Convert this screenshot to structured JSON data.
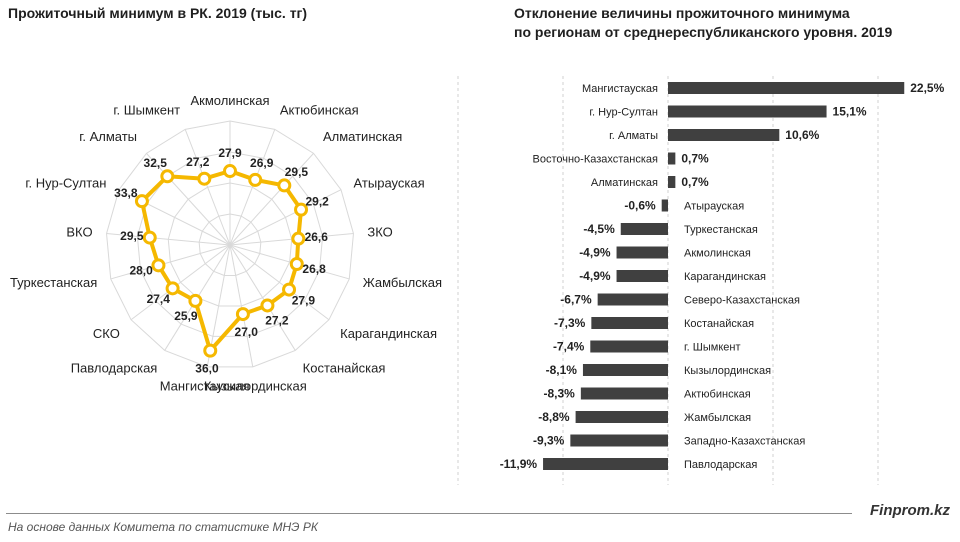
{
  "left_title": "Прожиточный минимум в РК. 2019  (тыс. тг)",
  "right_title_line1": "Отклонение величины прожиточного минимума",
  "right_title_line2": "по регионам от среднереспубликанского уровня. 2019",
  "footnote": "На основе данных  Комитета по статистике МНЭ РК",
  "brand": "Finprom.kz",
  "colors": {
    "radar_line": "#f5b800",
    "radar_marker_fill": "#ffffff",
    "bar": "#404040",
    "grid": "#d9d9d9"
  },
  "chart_data": [
    {
      "type": "radar",
      "title": "Прожиточный минимум в РК. 2019  (тыс. тг)",
      "categories": [
        "Акмолинская",
        "Актюбинская",
        "Алматинская",
        "Атырауская",
        "ЗКО",
        "Жамбылская",
        "Карагандинская",
        "Костанайская",
        "Кызылординская",
        "Мангистауская",
        "Павлодарская",
        "СКО",
        "Туркестанская",
        "ВКО",
        "г. Нур-Султан",
        "г. Алматы",
        "г. Шымкент"
      ],
      "values": [
        27.9,
        26.9,
        29.5,
        29.2,
        26.6,
        26.8,
        27.9,
        27.2,
        27.0,
        36.0,
        25.9,
        27.4,
        28.0,
        29.5,
        33.8,
        32.5,
        27.2
      ],
      "value_labels": [
        "27,9",
        "26,9",
        "29,5",
        "29,2",
        "26,6",
        "26,8",
        "27,9",
        "27,2",
        "27,0",
        "36,0",
        "25,9",
        "27,4",
        "28,0",
        "29,5",
        "33,8",
        "32,5",
        "27,2"
      ]
    },
    {
      "type": "bar",
      "orientation": "horizontal",
      "title": "Отклонение величины прожиточного минимума по регионам от среднереспубликанского уровня. 2019",
      "categories": [
        "Мангистауская",
        "г. Нур-Султан",
        "г. Алматы",
        "Восточно-Казахстанская",
        "Алматинская",
        "Атырауская",
        "Туркестанская",
        "Акмолинская",
        "Карагандинская",
        "Северо-Казахстанская",
        "Костанайская",
        "г. Шымкент",
        "Кызылординская",
        "Актюбинская",
        "Жамбылская",
        "Западно-Казахстанская",
        "Павлодарская"
      ],
      "values": [
        22.5,
        15.1,
        10.6,
        0.7,
        0.7,
        -0.6,
        -4.5,
        -4.9,
        -4.9,
        -6.7,
        -7.3,
        -7.4,
        -8.1,
        -8.3,
        -8.8,
        -9.3,
        -11.9
      ],
      "value_labels": [
        "22,5%",
        "15,1%",
        "10,6%",
        "0,7%",
        "0,7%",
        "-0,6%",
        "-4,5%",
        "-4,9%",
        "-4,9%",
        "-6,7%",
        "-7,3%",
        "-7,4%",
        "-8,1%",
        "-8,3%",
        "-8,8%",
        "-9,3%",
        "-11,9%"
      ],
      "unit": "%",
      "grid": "vertical dashed"
    }
  ]
}
